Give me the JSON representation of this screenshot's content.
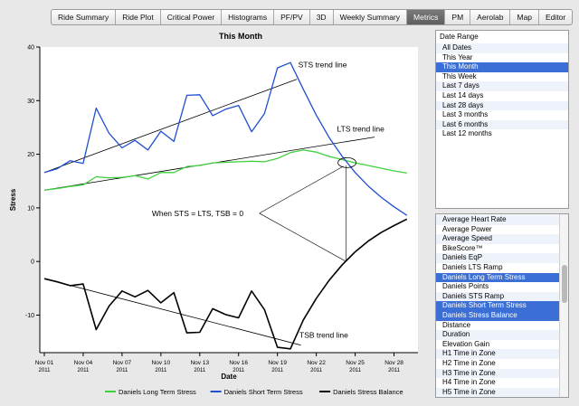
{
  "tabs": [
    {
      "label": "Ride Summary",
      "active": false
    },
    {
      "label": "Ride Plot",
      "active": false
    },
    {
      "label": "Critical Power",
      "active": false
    },
    {
      "label": "Histograms",
      "active": false
    },
    {
      "label": "PF/PV",
      "active": false
    },
    {
      "label": "3D",
      "active": false
    },
    {
      "label": "Weekly Summary",
      "active": false
    },
    {
      "label": "Metrics",
      "active": true
    },
    {
      "label": "PM",
      "active": false
    },
    {
      "label": "Aerolab",
      "active": false
    },
    {
      "label": "Map",
      "active": false
    },
    {
      "label": "Editor",
      "active": false
    }
  ],
  "date_range": {
    "title": "Date Range",
    "items": [
      "All Dates",
      "This Year",
      "This Month",
      "This Week",
      "Last 7 days",
      "Last 14 days",
      "Last 28 days",
      "Last 3 months",
      "Last 6 months",
      "Last 12 months"
    ],
    "selected": "This Month"
  },
  "metrics_list": {
    "items": [
      "Average Heart Rate",
      "Average Power",
      "Average Speed",
      "BikeScore™",
      "Daniels EqP",
      "Daniels LTS Ramp",
      "Daniels Long Term Stress",
      "Daniels Points",
      "Daniels STS Ramp",
      "Daniels Short Term Stress",
      "Daniels Stress Balance",
      "Distance",
      "Duration",
      "Elevation Gain",
      "H1 Time in Zone",
      "H2 Time in Zone",
      "H3 Time in Zone",
      "H4 Time in Zone",
      "H5 Time in Zone",
      "H6 Time in Zone"
    ],
    "selected": [
      "Daniels Long Term Stress",
      "Daniels Short Term Stress",
      "Daniels Stress Balance"
    ]
  },
  "colors": {
    "sts": "#1f4fd0",
    "lts": "#3fd03f",
    "tsb": "#000000",
    "selection": "#3b6fd6"
  },
  "chart_data": {
    "type": "line",
    "title": "This Month",
    "xlabel": "Date",
    "ylabel": "Stress",
    "xlim": [
      0,
      28.5
    ],
    "ylim": [
      -17,
      40
    ],
    "yticks": [
      -10,
      0,
      10,
      20,
      30,
      40
    ],
    "xticks": [
      {
        "x": 0,
        "label": "Nov 01",
        "year": "2011"
      },
      {
        "x": 3,
        "label": "Nov 04",
        "year": "2011"
      },
      {
        "x": 6,
        "label": "Nov 07",
        "year": "2011"
      },
      {
        "x": 9,
        "label": "Nov 10",
        "year": "2011"
      },
      {
        "x": 12,
        "label": "Nov 13",
        "year": "2011"
      },
      {
        "x": 15,
        "label": "Nov 16",
        "year": "2011"
      },
      {
        "x": 18,
        "label": "Nov 19",
        "year": "2011"
      },
      {
        "x": 21,
        "label": "Nov 22",
        "year": "2011"
      },
      {
        "x": 24,
        "label": "Nov 25",
        "year": "2011"
      },
      {
        "x": 27,
        "label": "Nov 28",
        "year": "2011"
      }
    ],
    "series": [
      {
        "name": "Daniels Long Term Stress",
        "color": "#3fd03f",
        "x": [
          0,
          1,
          2,
          3,
          4,
          5,
          6,
          7,
          8,
          9,
          10,
          11,
          12,
          13,
          14,
          15,
          16,
          17,
          18,
          19,
          20,
          21,
          22,
          23,
          24,
          25,
          26,
          27,
          28
        ],
        "values": [
          13.3,
          13.6,
          14.0,
          14.3,
          15.8,
          15.6,
          15.7,
          16.0,
          15.4,
          16.6,
          16.6,
          17.7,
          17.9,
          18.4,
          18.5,
          18.6,
          18.7,
          18.6,
          19.2,
          20.3,
          20.8,
          20.4,
          19.6,
          19.0,
          18.4,
          17.9,
          17.4,
          16.9,
          16.5
        ]
      },
      {
        "name": "Daniels Short Term Stress",
        "color": "#1f4fd0",
        "x": [
          0,
          1,
          2,
          3,
          4,
          5,
          6,
          7,
          8,
          9,
          10,
          11,
          12,
          13,
          14,
          15,
          16,
          17,
          18,
          19,
          20,
          21,
          22,
          23,
          24,
          25,
          26,
          27,
          28
        ],
        "values": [
          16.6,
          17.3,
          18.8,
          18.3,
          28.6,
          23.9,
          21.2,
          22.6,
          20.8,
          24.3,
          22.4,
          31.0,
          31.1,
          27.2,
          28.4,
          29.1,
          24.2,
          27.6,
          36.1,
          37.1,
          32.1,
          27.3,
          23.1,
          19.6,
          16.6,
          14.1,
          12.0,
          10.2,
          8.6
        ]
      },
      {
        "name": "Daniels Stress Balance",
        "color": "#000000",
        "x": [
          0,
          1,
          2,
          3,
          4,
          5,
          6,
          7,
          8,
          9,
          10,
          11,
          12,
          13,
          14,
          15,
          16,
          17,
          18,
          19,
          20,
          21,
          22,
          23,
          24,
          25,
          26,
          27,
          28
        ],
        "values": [
          -3.2,
          -3.8,
          -4.5,
          -4.2,
          -12.7,
          -8.3,
          -5.5,
          -6.6,
          -5.4,
          -7.7,
          -5.8,
          -13.3,
          -13.2,
          -8.8,
          -9.9,
          -10.5,
          -5.5,
          -9.0,
          -16.0,
          -16.3,
          -10.9,
          -6.9,
          -3.5,
          -0.6,
          1.8,
          3.8,
          5.4,
          6.7,
          7.9
        ]
      }
    ],
    "trend_lines": [
      {
        "name": "STS trend line",
        "from": [
          0,
          16.6
        ],
        "to": [
          19.5,
          34.0
        ]
      },
      {
        "name": "LTS trend line",
        "from": [
          0,
          13.3
        ],
        "to": [
          25.5,
          23.2
        ]
      },
      {
        "name": "TSB trend line",
        "from": [
          0,
          -3.2
        ],
        "to": [
          19.8,
          -15.6
        ]
      }
    ],
    "annotations": {
      "sts_trend": "STS trend line",
      "lts_trend": "LTS trend line",
      "tsb_trend": "TSB trend line",
      "crossover": "When STS = LTS, TSB = 0",
      "crossover_x": 23.3,
      "crossover_y": 18.6
    },
    "legend": {
      "position": "bottom"
    }
  }
}
